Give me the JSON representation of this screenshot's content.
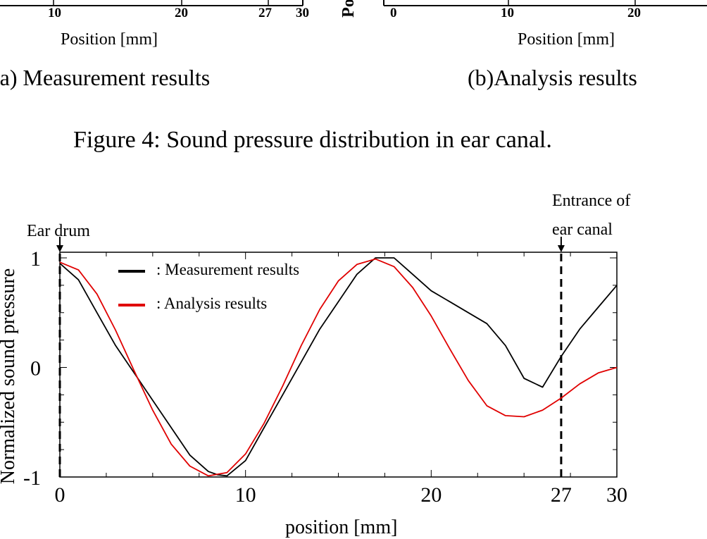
{
  "top_strip": {
    "left_panel": {
      "tick_labels": [
        "10",
        "20",
        "27",
        "30"
      ],
      "xlabel": "Position [mm]",
      "caption": "(a) Measurement results"
    },
    "right_panel": {
      "ylabel_fragment": "Po",
      "tick_labels": [
        "0",
        "10",
        "20"
      ],
      "xlabel": "Position [mm]",
      "caption": "(b)Analysis results"
    }
  },
  "figure4_caption": "Figure 4: Sound pressure distribution in ear canal.",
  "annotations": {
    "ear_drum": "Ear drum",
    "entrance_line1": "Entrance of",
    "entrance_line2": "ear canal"
  },
  "colors": {
    "measurement": "#000000",
    "analysis": "#e00000",
    "frame": "#000000"
  },
  "chart_data": {
    "type": "line",
    "title": "",
    "xlabel": "position [mm]",
    "ylabel": "Normalized sound pressure",
    "xlim": [
      0,
      30
    ],
    "ylim": [
      -1,
      1
    ],
    "x_ticks": [
      0,
      10,
      20,
      27,
      30
    ],
    "y_ticks": [
      -1,
      0,
      1
    ],
    "x_tick_labels": [
      "0",
      "10",
      "20",
      "27",
      "30"
    ],
    "y_tick_labels": [
      "-1",
      "0",
      "1"
    ],
    "reference_lines_x": [
      0,
      27
    ],
    "legend": {
      "placement": "top-left",
      "entries": [
        {
          "series": "Measurement results",
          "label": ": Measurement results"
        },
        {
          "series": "Analysis results",
          "label": ": Analysis results"
        }
      ]
    },
    "series": [
      {
        "name": "Measurement results",
        "x": [
          0,
          1,
          2,
          3,
          4,
          5,
          6,
          7,
          8,
          8.5,
          9,
          10,
          11,
          12,
          13,
          14,
          15,
          16,
          17,
          18,
          19,
          20,
          21,
          22,
          23,
          24,
          25,
          26,
          27,
          28,
          29,
          30
        ],
        "y": [
          0.95,
          0.8,
          0.5,
          0.2,
          -0.05,
          -0.3,
          -0.55,
          -0.8,
          -0.95,
          -0.98,
          -0.99,
          -0.85,
          -0.55,
          -0.25,
          0.05,
          0.35,
          0.6,
          0.85,
          1.0,
          1.0,
          0.85,
          0.7,
          0.6,
          0.5,
          0.4,
          0.2,
          -0.1,
          -0.18,
          0.1,
          0.35,
          0.55,
          0.75
        ]
      },
      {
        "name": "Analysis results",
        "x": [
          0,
          1,
          2,
          3,
          4,
          5,
          6,
          7,
          8,
          9,
          10,
          11,
          12,
          13,
          14,
          15,
          16,
          17,
          18,
          19,
          20,
          21,
          22,
          23,
          24,
          25,
          26,
          27,
          28,
          29,
          30
        ],
        "y": [
          0.96,
          0.89,
          0.67,
          0.34,
          -0.03,
          -0.39,
          -0.7,
          -0.9,
          -0.99,
          -0.96,
          -0.79,
          -0.51,
          -0.17,
          0.2,
          0.53,
          0.79,
          0.94,
          0.99,
          0.92,
          0.73,
          0.47,
          0.17,
          -0.12,
          -0.35,
          -0.44,
          -0.45,
          -0.39,
          -0.28,
          -0.15,
          -0.05,
          0.0
        ]
      }
    ]
  }
}
